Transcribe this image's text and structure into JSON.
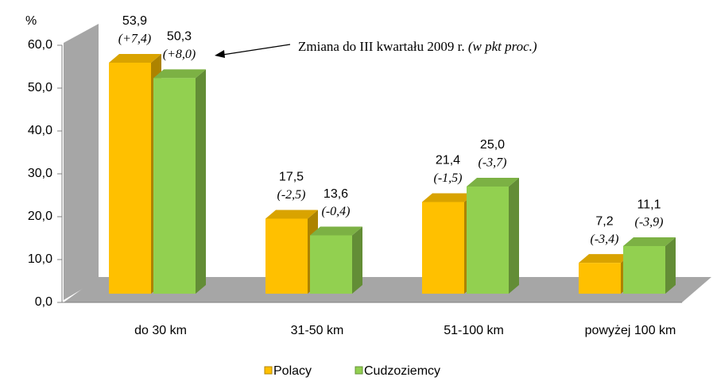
{
  "chart_data": {
    "type": "bar3d",
    "y_label": "%",
    "annotation": "Zmiana do III kwartału 2009 r.",
    "annotation_note": "(w pkt proc.)",
    "categories": [
      "do 30 km",
      "31-50 km",
      "51-100 km",
      "powyżej 100 km"
    ],
    "series": [
      {
        "name": "Polacy",
        "color": "#FFC000",
        "values": [
          53.9,
          17.5,
          21.4,
          7.2
        ],
        "value_labels": [
          "53,9",
          "17,5",
          "21,4",
          "7,2"
        ],
        "change_labels": [
          "(+7,4)",
          "(-2,5)",
          "(-1,5)",
          "(-3,4)"
        ]
      },
      {
        "name": "Cudzoziemcy",
        "color": "#92D050",
        "values": [
          50.3,
          13.6,
          25.0,
          11.1
        ],
        "value_labels": [
          "50,3",
          "13,6",
          "25,0",
          "11,1"
        ],
        "change_labels": [
          "(+8,0)",
          "(-0,4)",
          "(-3,7)",
          "(-3,9)"
        ]
      }
    ],
    "ylim": [
      0,
      60
    ],
    "yticks": [
      {
        "value": 0,
        "label": "0,0"
      },
      {
        "value": 10,
        "label": "10,0"
      },
      {
        "value": 20,
        "label": "20,0"
      },
      {
        "value": 30,
        "label": "30,0"
      },
      {
        "value": 40,
        "label": "40,0"
      },
      {
        "value": 50,
        "label": "50,0"
      },
      {
        "value": 60,
        "label": "60,0"
      }
    ],
    "legend": "bottom"
  }
}
